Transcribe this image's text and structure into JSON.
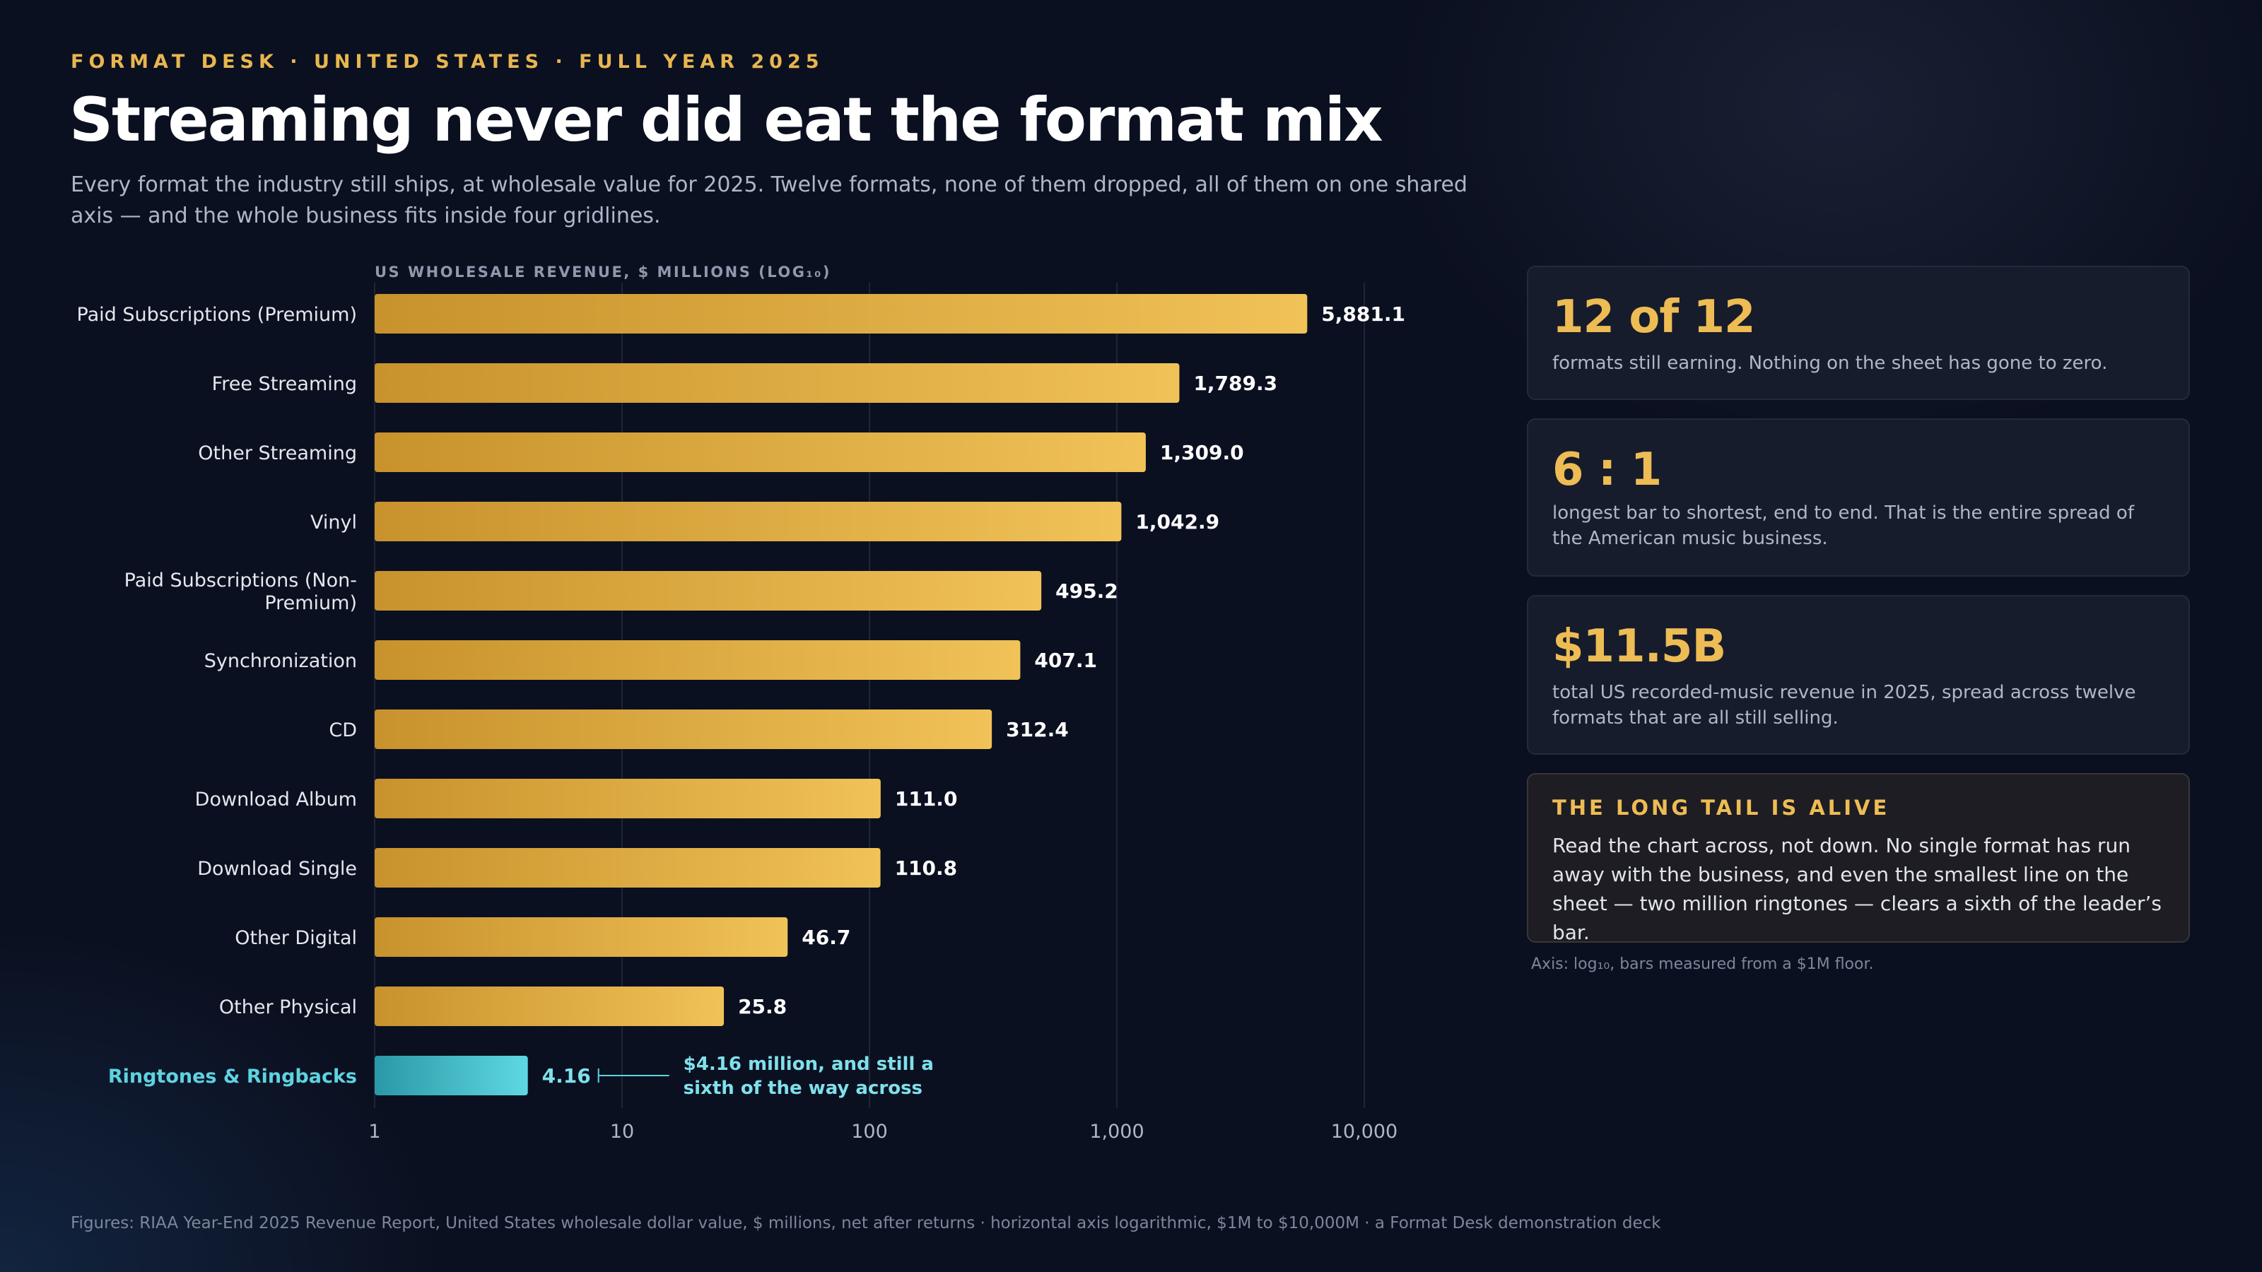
{
  "kicker": "FORMAT DESK · UNITED STATES · FULL YEAR 2025",
  "title": "Streaming never did eat the format mix",
  "subtitle": "Every format the industry still ships, at wholesale value for 2025. Twelve formats, none of them dropped, all of them on one shared axis — and the whole business fits inside four gridlines.",
  "colors": {
    "bar": "#e8b64f",
    "highlight": "#4cc7d4",
    "accent": "#eebc54"
  },
  "chart_data": {
    "type": "bar",
    "orientation": "horizontal",
    "scale": "log10",
    "axis_caption": "US WHOLESALE REVENUE, $ MILLIONS (LOG₁₀)",
    "xlim": [
      1,
      10000
    ],
    "ticks": [
      {
        "value": 1,
        "label": "1"
      },
      {
        "value": 10,
        "label": "10"
      },
      {
        "value": 100,
        "label": "100"
      },
      {
        "value": 1000,
        "label": "1,000"
      },
      {
        "value": 10000,
        "label": "10,000"
      }
    ],
    "grid": true,
    "categories": [
      "Paid Subscriptions (Premium)",
      "Free Streaming",
      "Other Streaming",
      "Vinyl",
      "Paid Subscriptions (Non-Premium)",
      "Synchronization",
      "CD",
      "Download Album",
      "Download Single",
      "Other Digital",
      "Other Physical",
      "Ringtones & Ringbacks"
    ],
    "values": [
      5881.1,
      1789.3,
      1309.0,
      1042.9,
      495.2,
      407.1,
      312.4,
      111.0,
      110.8,
      46.7,
      25.8,
      4.16
    ],
    "value_labels": [
      "5,881.1",
      "1,789.3",
      "1,309.0",
      "1,042.9",
      "495.2",
      "407.1",
      "312.4",
      "111.0",
      "110.8",
      "46.7",
      "25.8",
      "4.16"
    ],
    "highlight": "Ringtones & Ringbacks",
    "annotation": "$4.16 million, and still a sixth of the way across"
  },
  "cards": [
    {
      "big": "12 of 12",
      "desc": "formats still earning. Nothing on the sheet has gone to zero."
    },
    {
      "big": "6 : 1",
      "desc": "longest bar to shortest, end to end. That is the entire spread of the American music business."
    },
    {
      "big": "$11.5B",
      "desc": "total US recorded-music revenue in 2025, spread across twelve formats that are all still selling."
    }
  ],
  "callout": {
    "heading": "THE LONG TAIL IS ALIVE",
    "body": "Read the chart across, not down. No single format has run away with the business, and even the smallest line on the sheet — two million ringtones — clears a sixth of the leader’s bar."
  },
  "axis_note": "Axis: log₁₀, bars measured from a $1M floor.",
  "footer": "Figures: RIAA Year-End 2025 Revenue Report, United States wholesale dollar value, $ millions, net after returns · horizontal axis logarithmic, $1M to $10,000M · a Format Desk demonstration deck"
}
